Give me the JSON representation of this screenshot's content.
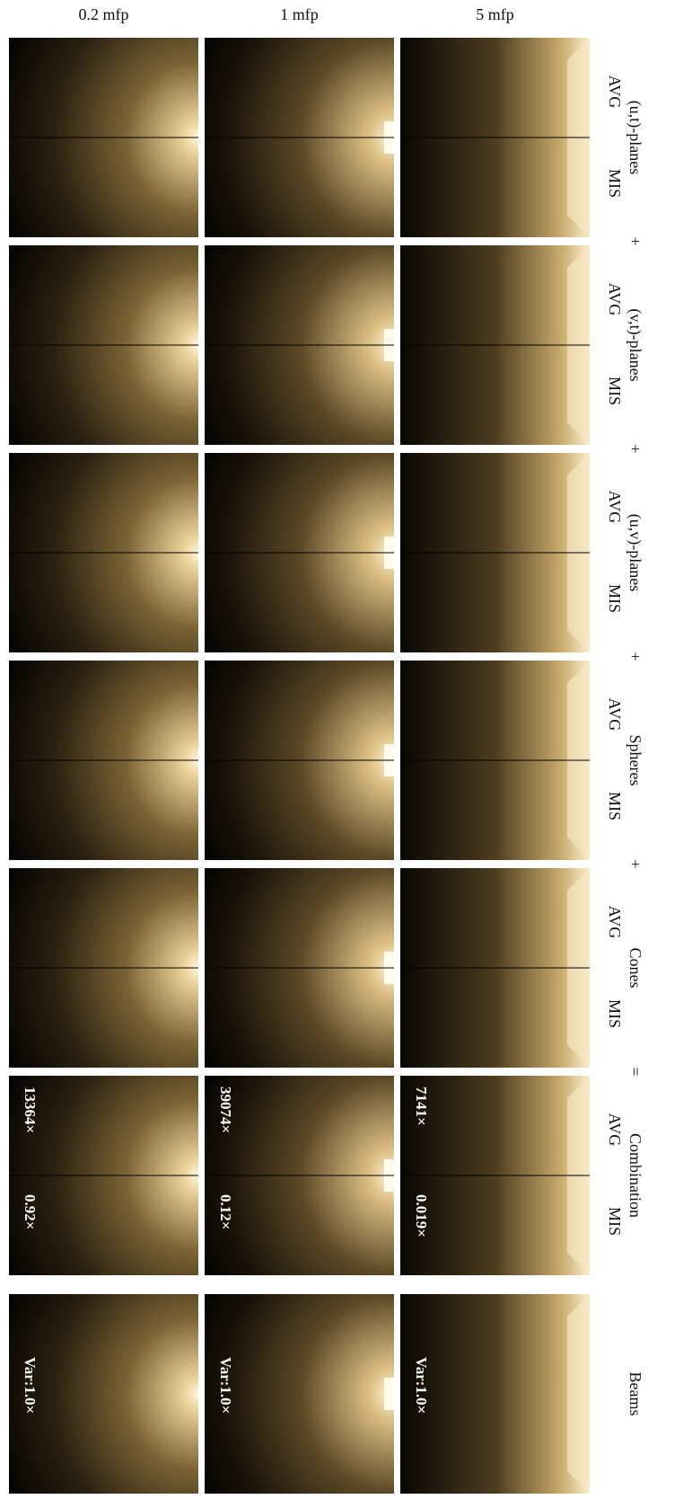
{
  "columns": [
    "0.2 mfp",
    "1 mfp",
    "5 mfp"
  ],
  "rows": [
    {
      "label": "(u,t)-planes",
      "avg": "AVG",
      "mis": "MIS"
    },
    {
      "label": "(v,t)-planes",
      "avg": "AVG",
      "mis": "MIS"
    },
    {
      "label": "(u,v)-planes",
      "avg": "AVG",
      "mis": "MIS"
    },
    {
      "label": "Spheres",
      "avg": "AVG",
      "mis": "MIS"
    },
    {
      "label": "Cones",
      "avg": "AVG",
      "mis": "MIS"
    },
    {
      "label": "Combination",
      "avg": "AVG",
      "mis": "MIS"
    },
    {
      "label": "Beams"
    }
  ],
  "operators": [
    "+",
    "+",
    "+",
    "+",
    "="
  ],
  "combination_labels": [
    {
      "avg": "13364×",
      "mis": "0.92×"
    },
    {
      "avg": "39074×",
      "mis": "0.12×"
    },
    {
      "avg": "7141×",
      "mis": "0.019×"
    }
  ],
  "beams_labels": [
    "Var:1.0×",
    "Var:1.0×",
    "Var:1.0×"
  ]
}
